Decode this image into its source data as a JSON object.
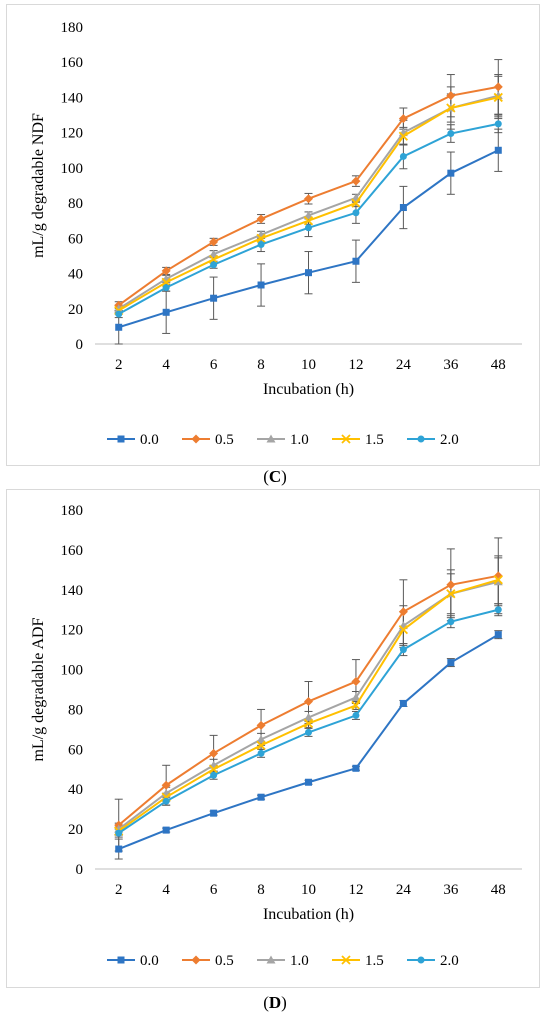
{
  "chart_data": [
    {
      "panel": "C",
      "type": "line",
      "ylabel": "mL/g degradable NDF",
      "xlabel": "Incubation (h)",
      "categories": [
        "2",
        "4",
        "6",
        "8",
        "10",
        "12",
        "24",
        "36",
        "48"
      ],
      "ylim": [
        0,
        180
      ],
      "yticks": [
        "0",
        "20",
        "40",
        "60",
        "80",
        "100",
        "120",
        "140",
        "160",
        "180"
      ],
      "legend_position": "bottom",
      "series": [
        {
          "name": "0.0",
          "color": "#2e75c4",
          "marker": "square",
          "values": [
            9.5,
            18,
            26,
            33.5,
            40.5,
            47,
            77.5,
            97,
            110
          ],
          "errors": [
            9.5,
            12,
            12,
            12,
            12,
            12,
            12,
            12,
            12
          ]
        },
        {
          "name": "0.5",
          "color": "#ed7d31",
          "marker": "diamond",
          "values": [
            22,
            41.5,
            58,
            71,
            82.5,
            92.5,
            128,
            141,
            146
          ],
          "errors": [
            2,
            2,
            2,
            2.5,
            3,
            3,
            6,
            12,
            15.5
          ]
        },
        {
          "name": "1.0",
          "color": "#a5a5a5",
          "marker": "triangle",
          "values": [
            20,
            37,
            51,
            62,
            73,
            83,
            120,
            134,
            141
          ],
          "errors": [
            2,
            2,
            2,
            2,
            2,
            2,
            7,
            12,
            12
          ]
        },
        {
          "name": "1.5",
          "color": "#ffc000",
          "marker": "x",
          "values": [
            19,
            35,
            48,
            60,
            70,
            80,
            118,
            134,
            140
          ],
          "errors": [
            2,
            2,
            2,
            2,
            2,
            2,
            5,
            8,
            12
          ]
        },
        {
          "name": "2.0",
          "color": "#2ea3d6",
          "marker": "circle",
          "values": [
            17,
            32,
            45,
            56.5,
            66,
            74.5,
            106.5,
            119.5,
            125
          ],
          "errors": [
            2,
            2,
            2,
            4,
            5,
            6,
            7,
            5,
            5
          ]
        }
      ]
    },
    {
      "panel": "D",
      "type": "line",
      "ylabel": "mL/g degradable ADF",
      "xlabel": "Incubation (h)",
      "categories": [
        "2",
        "4",
        "6",
        "8",
        "10",
        "12",
        "24",
        "36",
        "48"
      ],
      "ylim": [
        0,
        180
      ],
      "yticks": [
        "0",
        "20",
        "40",
        "60",
        "80",
        "100",
        "120",
        "140",
        "160",
        "180"
      ],
      "legend_position": "bottom",
      "series": [
        {
          "name": "0.0",
          "color": "#2e75c4",
          "marker": "square",
          "values": [
            10,
            19.5,
            28,
            36,
            43.5,
            50.5,
            83,
            103.5,
            117.5
          ],
          "errors": [
            5,
            1,
            1,
            1,
            1,
            1,
            1.5,
            2,
            2
          ]
        },
        {
          "name": "0.5",
          "color": "#ed7d31",
          "marker": "diamond",
          "values": [
            22,
            42,
            58,
            72,
            84,
            94,
            129,
            142.5,
            147
          ],
          "errors": [
            13,
            10,
            9,
            8,
            10,
            11,
            16,
            18,
            19
          ]
        },
        {
          "name": "1.0",
          "color": "#a5a5a5",
          "marker": "triangle",
          "values": [
            20,
            38,
            52,
            65,
            76,
            86,
            122,
            138,
            144
          ],
          "errors": [
            3,
            3,
            3,
            3,
            3,
            3,
            10,
            12,
            12
          ]
        },
        {
          "name": "1.5",
          "color": "#ffc000",
          "marker": "x",
          "values": [
            19,
            36,
            50,
            62,
            73,
            82,
            120,
            138,
            145
          ],
          "errors": [
            2,
            2,
            2,
            2,
            2,
            2,
            9,
            10,
            12
          ]
        },
        {
          "name": "2.0",
          "color": "#2ea3d6",
          "marker": "circle",
          "values": [
            18,
            34,
            47,
            58,
            68.5,
            77,
            110,
            124,
            130
          ],
          "errors": [
            2,
            2,
            2,
            2,
            2,
            2,
            3,
            3,
            3
          ]
        }
      ]
    }
  ],
  "captions": {
    "c": "C",
    "d": "D"
  }
}
